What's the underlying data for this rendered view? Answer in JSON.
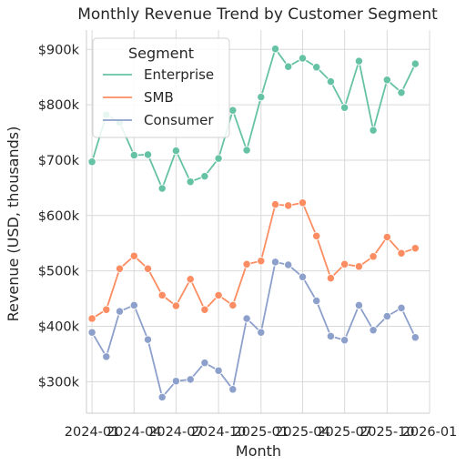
{
  "chart_data": {
    "type": "line",
    "title": "Monthly Revenue Trend by Customer Segment",
    "xlabel": "Month",
    "ylabel": "Revenue (USD, thousands)",
    "x": [
      "2024-01",
      "2024-02",
      "2024-03",
      "2024-04",
      "2024-05",
      "2024-06",
      "2024-07",
      "2024-08",
      "2024-09",
      "2024-10",
      "2024-11",
      "2024-12",
      "2025-01",
      "2025-02",
      "2025-03",
      "2025-04",
      "2025-05",
      "2025-06",
      "2025-07",
      "2025-08",
      "2025-09",
      "2025-10",
      "2025-11",
      "2025-12"
    ],
    "x_ticks": [
      "2024-01",
      "2024-04",
      "2024-07",
      "2024-10",
      "2025-01",
      "2025-04",
      "2025-07",
      "2025-10",
      "2026-01"
    ],
    "y_ticks": [
      300,
      400,
      500,
      600,
      700,
      800,
      900
    ],
    "y_tick_labels": [
      "$300k",
      "$400k",
      "$500k",
      "$600k",
      "$700k",
      "$800k",
      "$900k"
    ],
    "ylim": [
      243,
      935
    ],
    "xlim": [
      "2023-12-20",
      "2026-01-01"
    ],
    "grid": true,
    "legend": {
      "title": "Segment",
      "position": "top-left"
    },
    "series": [
      {
        "name": "Enterprise",
        "color": "#66c2a5",
        "values": [
          697,
          782,
          768,
          709,
          710,
          649,
          717,
          661,
          671,
          703,
          790,
          718,
          814,
          901,
          869,
          884,
          868,
          842,
          795,
          879,
          754,
          845,
          822,
          874
        ]
      },
      {
        "name": "SMB",
        "color": "#fc8d62",
        "values": [
          414,
          430,
          504,
          527,
          504,
          456,
          437,
          485,
          430,
          456,
          438,
          512,
          518,
          620,
          618,
          623,
          563,
          487,
          512,
          508,
          526,
          561,
          532,
          541
        ]
      },
      {
        "name": "Consumer",
        "color": "#8da0cb",
        "values": [
          389,
          345,
          427,
          438,
          376,
          272,
          301,
          304,
          334,
          320,
          286,
          414,
          389,
          516,
          511,
          489,
          446,
          382,
          375,
          438,
          393,
          418,
          433,
          380
        ]
      }
    ]
  }
}
